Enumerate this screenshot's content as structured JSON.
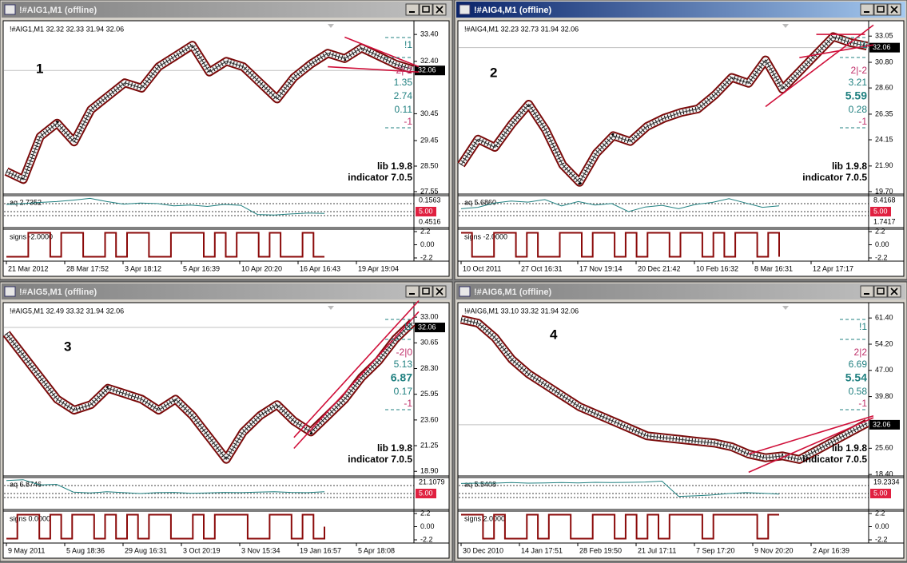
{
  "windows": [
    {
      "title": "!#AIG1,M1 (offline)",
      "header": "!#AIG1,M1  32.32 32.33 31.94 32.06",
      "number": "1",
      "ylim": [
        27.46,
        33.85
      ],
      "yticks": [
        {
          "value": 33.4,
          "label": "33.40"
        },
        {
          "value": 32.4,
          "label": "32.40"
        },
        {
          "value": 30.45,
          "label": "30.45"
        },
        {
          "value": 29.45,
          "label": "29.45"
        },
        {
          "value": 28.5,
          "label": "28.50"
        },
        27.55
      ],
      "current": 32.06,
      "price": [
        28.3,
        28.0,
        29.6,
        30.1,
        29.4,
        30.6,
        31.1,
        31.6,
        31.4,
        32.2,
        32.6,
        33.0,
        32.0,
        32.4,
        32.2,
        31.6,
        31.0,
        31.8,
        32.3,
        32.7,
        32.5,
        32.9,
        32.6,
        32.3,
        32.1
      ],
      "trendlines": [
        [
          20,
          33.3,
          24,
          32.2
        ],
        [
          19,
          32.2,
          24,
          32.0
        ]
      ],
      "side": [
        "!1",
        "2|-2",
        "1.35",
        "2.74",
        "0.11",
        "-1"
      ],
      "lib": "lib 1.9.8",
      "indicator": "indicator 7.0.5",
      "aq": {
        "label": "aq 2.7352",
        "ylim": [
          0,
          10
        ],
        "right": [
          "0.1563",
          "5.00",
          "0.4516"
        ],
        "values": [
          7.5,
          7.8,
          8.2,
          8.5,
          9,
          9.6,
          8.5,
          7.6,
          8,
          7.8,
          7,
          7.3,
          6.8,
          7.5,
          7.2,
          4,
          3.8,
          4.2,
          4.5,
          4.4
        ]
      },
      "signs": {
        "label": "signs -2.0000",
        "ylim": [
          -2.6,
          2.6
        ],
        "yticks": [
          2.2,
          {
            "value": 0,
            "label": "0.00"
          },
          -2.2
        ],
        "values": [
          -2,
          -2,
          2,
          2,
          -2,
          2,
          2,
          -2,
          -2,
          2,
          -2,
          2,
          2,
          -2,
          -2,
          2,
          2,
          2,
          -2,
          2,
          -2,
          2,
          2,
          -2,
          2,
          -2,
          -2,
          2,
          -2,
          -2
        ]
      },
      "xlabels": [
        "21 Mar 2012",
        "28 Mar 17:52",
        "3 Apr 18:12",
        "5 Apr 16:39",
        "10 Apr 20:20",
        "16 Apr 16:43",
        "19 Apr 19:04"
      ]
    },
    {
      "title": "!#AIG4,M1 (offline)",
      "active": true,
      "header": "!#AIG4,M1  32.23 32.73 31.94 32.06",
      "number": "2",
      "ylim": [
        19.49,
        34.23
      ],
      "yticks": [
        33.05,
        {
          "value": 30.8,
          "label": "30.80"
        },
        {
          "value": 28.6,
          "label": "28.60"
        },
        26.35,
        24.15,
        {
          "value": 21.9,
          "label": "21.90"
        },
        {
          "value": 19.7,
          "label": "19.70"
        }
      ],
      "current": 32.06,
      "price": [
        22,
        24.2,
        23.5,
        25.5,
        27.2,
        25,
        22,
        20.5,
        23,
        24.5,
        24,
        25.3,
        26,
        26.5,
        26.8,
        28,
        29.5,
        29,
        31,
        28.5,
        30,
        31.5,
        33,
        32.5,
        32.2
      ],
      "trendlines": [
        [
          18,
          27,
          24,
          34
        ],
        [
          21,
          33.2,
          23.5,
          33.2
        ],
        [
          20,
          31.2,
          24,
          32.3
        ]
      ],
      "side": [
        "!1",
        "2|-2",
        "3.21",
        "5.59",
        "0.28",
        "-1"
      ],
      "side_bold": 3,
      "lib": "lib 1.9.8",
      "indicator": "indicator 7.0.5",
      "aq": {
        "label": "aq 5.6860",
        "ylim": [
          0,
          10
        ],
        "right": [
          "8.4168",
          "5.00",
          "1.7417"
        ],
        "values": [
          6,
          6.5,
          8,
          8.7,
          8.3,
          9.2,
          7,
          8.5,
          7.3,
          7.8,
          5,
          6.6,
          7.2,
          6,
          7.5,
          8.2,
          9.5,
          8,
          6.5,
          7
        ]
      },
      "signs": {
        "label": "signs -2.0000",
        "ylim": [
          -2.6,
          2.6
        ],
        "yticks": [
          2.2,
          {
            "value": 0,
            "label": "0.00"
          },
          -2.2
        ],
        "values": [
          2,
          -2,
          -2,
          2,
          2,
          -2,
          2,
          -2,
          -2,
          2,
          2,
          -2,
          2,
          2,
          -2,
          2,
          -2,
          2,
          2,
          -2,
          2,
          2,
          -2,
          2,
          -2,
          2,
          2,
          -2,
          2,
          -2
        ]
      },
      "xlabels": [
        "10 Oct 2011",
        "27 Oct 16:31",
        "17 Nov 19:14",
        "20 Dec 21:42",
        "10 Feb 16:32",
        "8 Mar 16:31",
        "12 Apr 17:17"
      ]
    },
    {
      "title": "!#AIG5,M1 (offline)",
      "header": "!#AIG5,M1  32.49 33.32 31.94 32.06",
      "number": "3",
      "ylim": [
        18.48,
        34.18
      ],
      "yticks": [
        {
          "value": 33,
          "label": "33.00"
        },
        30.65,
        {
          "value": 28.3,
          "label": "28.30"
        },
        25.95,
        {
          "value": 23.6,
          "label": "23.60"
        },
        21.25,
        {
          "value": 18.9,
          "label": "18.90"
        }
      ],
      "current": 32.06,
      "price": [
        31.5,
        29.5,
        27.5,
        25.5,
        24.5,
        25,
        26.5,
        26,
        25.5,
        24.5,
        25.5,
        24,
        22,
        20,
        22.5,
        24,
        25,
        23.5,
        22.5,
        24,
        25.5,
        27.5,
        29,
        31,
        32.5
      ],
      "trendlines": [
        [
          17,
          21,
          24,
          33.5
        ],
        [
          17,
          22,
          24,
          34.5
        ]
      ],
      "side": [
        "!1",
        "-2|0",
        "5.13",
        "6.87",
        "0.17",
        "-1"
      ],
      "side_bold": 3,
      "lib": "lib 1.9.8",
      "indicator": "indicator 7.0.5",
      "aq": {
        "label": "aq 6.8746",
        "ylim": [
          0,
          10
        ],
        "right": [
          "21.1079",
          "5.00"
        ],
        "values": [
          9.5,
          9.8,
          8,
          8.2,
          5.5,
          5.2,
          5.6,
          5.3,
          5,
          5.3,
          5.4,
          5.1,
          5.2,
          5.4,
          5.3,
          5.5,
          5.6,
          5.4,
          5.3,
          5.6
        ]
      },
      "signs": {
        "label": "signs 0.0000",
        "ylim": [
          -2.6,
          2.6
        ],
        "yticks": [
          2.2,
          {
            "value": 0,
            "label": "0.00"
          },
          -2.2
        ],
        "values": [
          -2,
          2,
          2,
          -2,
          2,
          -2,
          2,
          2,
          -2,
          2,
          -2,
          2,
          -2,
          2,
          2,
          -2,
          -2,
          2,
          -2,
          2,
          2,
          2,
          -2,
          -2,
          2,
          2,
          -2,
          2,
          -2,
          0
        ]
      },
      "xlabels": [
        "9 May 2011",
        "5 Aug 18:36",
        "29 Aug 16:31",
        "3 Oct 20:19",
        "3 Nov 15:34",
        "19 Jan 16:57",
        "5 Apr 18:08"
      ]
    },
    {
      "title": "!#AIG6,M1 (offline)",
      "header": "!#AIG6,M1  33.10 33.32 31.94 32.06",
      "number": "4",
      "ylim": [
        17.99,
        65.17
      ],
      "yticks": [
        {
          "value": 61.4,
          "label": "61.40"
        },
        {
          "value": 54.2,
          "label": "54.20"
        },
        {
          "value": 47,
          "label": "47.00"
        },
        {
          "value": 39.8,
          "label": "39.80"
        },
        {
          "value": 25.6,
          "label": "25.60"
        },
        {
          "value": 18.4,
          "label": "18.40"
        }
      ],
      "current": 32.06,
      "price": [
        61,
        60,
        56,
        50,
        46,
        43,
        40,
        37,
        35,
        33,
        31,
        29,
        28.5,
        28,
        27.5,
        27,
        26,
        24,
        23,
        23.5,
        22.5,
        25,
        27.5,
        30,
        32.5
      ],
      "trendlines": [
        [
          17,
          19,
          24,
          34
        ],
        [
          17,
          24,
          24,
          34.5
        ]
      ],
      "side": [
        "!1",
        "2|2",
        "6.69",
        "5.54",
        "0.58",
        "-1"
      ],
      "side_bold": 3,
      "lib": "lib 1.9.8",
      "indicator": "indicator 7.0.5",
      "aq": {
        "label": "aq 5.5408",
        "ylim": [
          0,
          10
        ],
        "right": [
          "19.2334",
          "5.00"
        ],
        "values": [
          8.5,
          8.6,
          8.6,
          8.8,
          8.6,
          8.7,
          8.8,
          8.7,
          8.9,
          8.8,
          8.9,
          9,
          9.3,
          4,
          4.2,
          4.5,
          5,
          5.3,
          5.1,
          4.8
        ]
      },
      "signs": {
        "label": "signs 2.0000",
        "ylim": [
          -2.6,
          2.6
        ],
        "yticks": [
          2.2,
          {
            "value": 0,
            "label": "0.00"
          },
          -2.2
        ],
        "values": [
          2,
          2,
          -2,
          2,
          -2,
          -2,
          2,
          -2,
          2,
          2,
          -2,
          -2,
          2,
          2,
          -2,
          2,
          -2,
          2,
          -2,
          2,
          2,
          2,
          -2,
          2,
          2,
          2,
          2,
          -2,
          2,
          2
        ]
      },
      "xlabels": [
        "30 Dec 2010",
        "14 Jan 17:51",
        "28 Feb 19:50",
        "21 Jul 17:11",
        "7 Sep 17:20",
        "9 Nov 20:20",
        "2 Apr 16:39"
      ]
    }
  ]
}
